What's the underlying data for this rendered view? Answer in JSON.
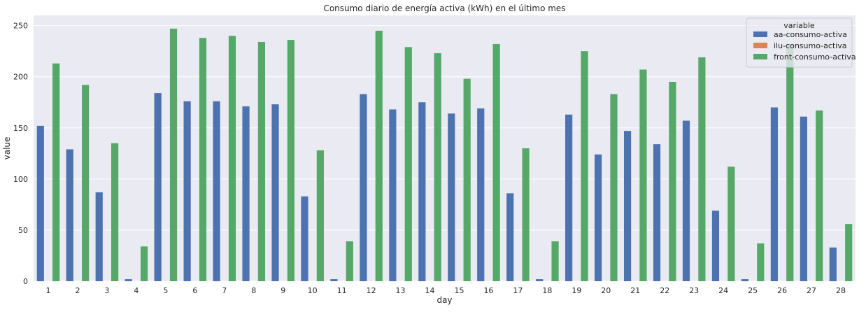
{
  "chart_data": {
    "type": "bar",
    "title": "Consumo diario de energía activa (kWh) en el último mes",
    "xlabel": "day",
    "ylabel": "value",
    "ylim": [
      0,
      260
    ],
    "yticks": [
      0,
      50,
      100,
      150,
      200,
      250
    ],
    "grid": true,
    "legend": {
      "title": "variable",
      "placement": "top-right"
    },
    "categories": [
      "1",
      "2",
      "3",
      "4",
      "5",
      "6",
      "7",
      "8",
      "9",
      "10",
      "11",
      "12",
      "13",
      "14",
      "15",
      "16",
      "17",
      "18",
      "19",
      "20",
      "21",
      "22",
      "23",
      "24",
      "25",
      "26",
      "27",
      "28"
    ],
    "series": [
      {
        "name": "aa-consumo-activa",
        "color": "#4c72b0",
        "values": [
          152,
          129,
          87,
          2,
          184,
          176,
          176,
          171,
          173,
          83,
          2,
          183,
          168,
          175,
          164,
          169,
          86,
          2,
          163,
          124,
          147,
          134,
          157,
          69,
          2,
          170,
          161,
          33
        ]
      },
      {
        "name": "ilu-consumo-activa",
        "color": "#dd8452",
        "values": [
          0,
          0,
          0,
          0,
          0,
          0,
          0,
          0,
          0,
          0,
          0,
          0,
          0,
          0,
          0,
          0,
          0,
          0,
          0,
          0,
          0,
          0,
          0,
          0,
          0,
          0,
          0,
          0
        ]
      },
      {
        "name": "front-consumo-activa",
        "color": "#55a868",
        "values": [
          213,
          192,
          135,
          34,
          247,
          238,
          240,
          234,
          236,
          128,
          39,
          245,
          229,
          223,
          198,
          232,
          130,
          39,
          225,
          183,
          207,
          195,
          219,
          112,
          37,
          232,
          167,
          56
        ]
      }
    ]
  }
}
